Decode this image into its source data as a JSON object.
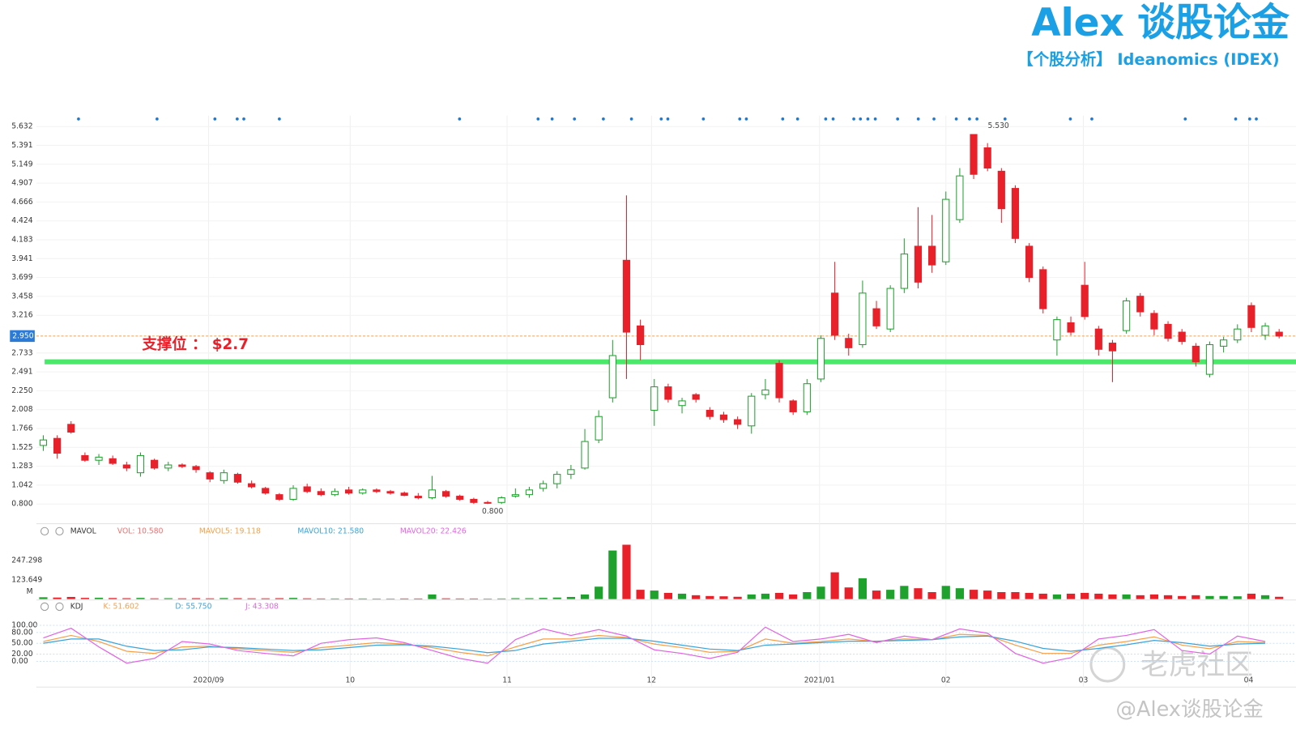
{
  "header": {
    "title": "Alex 谈股论金",
    "subtitle": "【个股分析】 Ideanomics (IDEX)"
  },
  "watermarks": [
    "老虎社区",
    "@Alex谈股论金"
  ],
  "chart_data": [
    {
      "type": "candlestick",
      "up_color": "#1fa12e",
      "down_color": "#e8202a",
      "xlim": [
        -0.5,
        89.5
      ],
      "ylim": [
        0.58,
        5.75
      ],
      "yticks": [
        {
          "value": 0.8,
          "label": "0.800"
        },
        1.042,
        1.283,
        1.525,
        1.766,
        2.008,
        {
          "value": 2.25,
          "label": "2.250"
        },
        2.491,
        2.733,
        3.216,
        3.458,
        3.699,
        3.941,
        4.183,
        4.424,
        4.666,
        4.907,
        5.149,
        5.391,
        5.632
      ],
      "grid": true,
      "last_price": {
        "value": 2.95,
        "label": "2.950",
        "color": "#f0a050"
      },
      "support_line": {
        "value": 2.62,
        "color": "#4be86b"
      },
      "annotations": [
        {
          "text": "支撑位 ： $2.7",
          "color": "#e8202a"
        }
      ],
      "high_mark": {
        "x": 67,
        "value": 5.53,
        "label": "5.530"
      },
      "low_mark": {
        "x": 32,
        "value": 0.8,
        "label": "0.800"
      },
      "open": [
        1.55,
        1.64,
        1.82,
        1.42,
        1.36,
        1.38,
        1.3,
        1.2,
        1.36,
        1.26,
        1.3,
        1.28,
        1.2,
        1.1,
        1.18,
        1.06,
        1.0,
        0.92,
        0.86,
        1.02,
        0.96,
        0.92,
        0.98,
        0.94,
        0.98,
        0.96,
        0.94,
        0.9,
        0.88,
        0.96,
        0.9,
        0.86,
        0.82,
        0.82,
        0.9,
        0.92,
        1.0,
        1.06,
        1.18,
        1.26,
        1.62,
        2.16,
        3.92,
        3.08,
        2.0,
        2.3,
        2.06,
        2.2,
        2.0,
        1.94,
        1.88,
        1.8,
        2.2,
        2.6,
        2.12,
        1.98,
        2.4,
        3.5,
        2.92,
        2.84,
        3.3,
        3.04,
        3.56,
        4.1,
        4.1,
        3.9,
        4.44,
        5.53,
        5.36,
        5.06,
        4.84,
        4.1,
        3.8,
        2.9,
        3.12,
        3.6,
        3.04,
        2.86,
        3.02,
        3.46,
        3.24,
        3.1,
        3.0,
        2.82,
        2.46,
        2.82,
        2.9,
        3.34,
        2.96,
        3.0
      ],
      "high": [
        1.68,
        1.68,
        1.86,
        1.46,
        1.44,
        1.42,
        1.34,
        1.46,
        1.38,
        1.34,
        1.32,
        1.3,
        1.22,
        1.24,
        1.2,
        1.1,
        1.02,
        0.94,
        1.04,
        1.06,
        1.0,
        1.0,
        1.02,
        1.0,
        1.0,
        0.98,
        0.96,
        0.94,
        1.16,
        0.98,
        0.92,
        0.88,
        0.84,
        0.9,
        1.0,
        1.02,
        1.1,
        1.22,
        1.3,
        1.76,
        2.0,
        2.9,
        4.75,
        3.16,
        2.4,
        2.34,
        2.16,
        2.22,
        2.04,
        1.98,
        1.92,
        2.22,
        2.4,
        2.64,
        2.14,
        2.4,
        2.96,
        3.9,
        2.98,
        3.66,
        3.4,
        3.6,
        4.2,
        4.6,
        4.5,
        4.8,
        5.1,
        5.53,
        5.42,
        5.1,
        4.88,
        4.14,
        3.84,
        3.2,
        3.2,
        3.9,
        3.08,
        2.9,
        3.44,
        3.5,
        3.28,
        3.14,
        3.04,
        2.86,
        2.88,
        2.94,
        3.1,
        3.38,
        3.12,
        3.04
      ],
      "low": [
        1.48,
        1.38,
        1.7,
        1.34,
        1.3,
        1.3,
        1.22,
        1.15,
        1.24,
        1.22,
        1.26,
        1.2,
        1.08,
        1.06,
        1.06,
        1.0,
        0.92,
        0.84,
        0.84,
        0.94,
        0.9,
        0.9,
        0.92,
        0.92,
        0.94,
        0.92,
        0.9,
        0.86,
        0.86,
        0.88,
        0.84,
        0.8,
        0.8,
        0.8,
        0.88,
        0.88,
        0.96,
        1.0,
        1.12,
        1.24,
        1.58,
        2.1,
        2.4,
        2.64,
        1.8,
        2.1,
        1.96,
        2.1,
        1.88,
        1.84,
        1.76,
        1.7,
        2.14,
        2.1,
        1.94,
        1.94,
        2.36,
        2.9,
        2.7,
        2.8,
        3.04,
        3.0,
        3.5,
        3.56,
        3.76,
        3.86,
        4.4,
        4.96,
        5.06,
        4.4,
        4.14,
        3.64,
        3.24,
        2.7,
        2.96,
        3.16,
        2.7,
        2.36,
        2.98,
        3.2,
        2.96,
        2.88,
        2.84,
        2.56,
        2.42,
        2.74,
        2.86,
        3.0,
        2.9,
        2.92
      ],
      "close": [
        1.62,
        1.45,
        1.72,
        1.36,
        1.4,
        1.32,
        1.26,
        1.42,
        1.26,
        1.3,
        1.28,
        1.24,
        1.12,
        1.2,
        1.08,
        1.02,
        0.94,
        0.86,
        1.0,
        0.96,
        0.92,
        0.96,
        0.94,
        0.98,
        0.96,
        0.94,
        0.91,
        0.88,
        0.98,
        0.9,
        0.86,
        0.82,
        0.81,
        0.88,
        0.92,
        0.98,
        1.06,
        1.18,
        1.24,
        1.6,
        1.92,
        2.7,
        3.0,
        2.84,
        2.3,
        2.14,
        2.12,
        2.14,
        1.92,
        1.88,
        1.82,
        2.18,
        2.26,
        2.16,
        1.98,
        2.34,
        2.92,
        2.96,
        2.8,
        3.5,
        3.08,
        3.56,
        4.0,
        3.64,
        3.86,
        4.7,
        5.0,
        5.02,
        5.1,
        4.58,
        4.2,
        3.7,
        3.3,
        3.16,
        3.0,
        3.2,
        2.78,
        2.76,
        3.4,
        3.26,
        3.04,
        2.92,
        2.88,
        2.62,
        2.84,
        2.9,
        3.04,
        3.06,
        3.08,
        2.95
      ]
    },
    {
      "type": "bar",
      "indicator": "MAVOL",
      "name": "VOL: 10.580",
      "name_color": "#f07070",
      "legend_extra": [
        {
          "text": "MAVOL5: 19.118",
          "color": "#f5a04a"
        },
        {
          "text": "MAVOL10: 21.580",
          "color": "#3ba3d8"
        },
        {
          "text": "MAVOL20: 22.426",
          "color": "#e066e0"
        }
      ],
      "unit": "M",
      "xlim": [
        -0.5,
        89.5
      ],
      "ylim": [
        0,
        371
      ],
      "yticks": [
        123.649,
        247.298
      ],
      "values": [
        12,
        10,
        14,
        8,
        9,
        7,
        6,
        8,
        5,
        6,
        5,
        6,
        5,
        7,
        6,
        5,
        5,
        6,
        8,
        5,
        4,
        4,
        4,
        4,
        3,
        3,
        4,
        4,
        30,
        5,
        4,
        4,
        3,
        4,
        6,
        6,
        8,
        10,
        14,
        30,
        80,
        312,
        349,
        60,
        55,
        40,
        35,
        25,
        20,
        18,
        15,
        30,
        35,
        40,
        30,
        45,
        80,
        172,
        75,
        134,
        55,
        60,
        85,
        70,
        45,
        85,
        70,
        60,
        55,
        45,
        45,
        40,
        35,
        30,
        35,
        40,
        35,
        30,
        30,
        25,
        30,
        25,
        20,
        25,
        20,
        20,
        18,
        35,
        25,
        15
      ]
    },
    {
      "type": "line",
      "indicator": "KDJ",
      "xlim": [
        -0.5,
        89.5
      ],
      "ylim": [
        -25,
        114.5
      ],
      "yticks": [
        {
          "value": 0,
          "label": "0.00"
        },
        {
          "value": 20,
          "label": "20.00"
        },
        {
          "value": 50,
          "label": "50.00"
        },
        {
          "value": 80,
          "label": "80.00"
        },
        {
          "value": 100,
          "label": "100.00"
        }
      ],
      "xticks": [
        {
          "value": 11.9,
          "label": "2020/09"
        },
        {
          "value": 22.1,
          "label": "10"
        },
        {
          "value": 33.4,
          "label": "11"
        },
        {
          "value": 43.8,
          "label": "12"
        },
        {
          "value": 55.9,
          "label": "2021/01"
        },
        {
          "value": 65.0,
          "label": "02"
        },
        {
          "value": 74.9,
          "label": "03"
        },
        {
          "value": 86.8,
          "label": "04"
        }
      ],
      "x": [
        0,
        2,
        4,
        6,
        8,
        10,
        12,
        14,
        16,
        18,
        20,
        22,
        24,
        26,
        28,
        30,
        32,
        34,
        36,
        38,
        40,
        42,
        44,
        46,
        48,
        50,
        52,
        54,
        56,
        58,
        60,
        62,
        64,
        66,
        68,
        70,
        72,
        74,
        76,
        78,
        80,
        82,
        84,
        86,
        88
      ],
      "series": [
        {
          "name": "K: 51.602",
          "color": "#f5a04a",
          "values": [
            55,
            72,
            55,
            28,
            22,
            40,
            42,
            35,
            30,
            25,
            38,
            45,
            52,
            48,
            38,
            25,
            15,
            40,
            62,
            62,
            72,
            66,
            48,
            38,
            25,
            28,
            62,
            50,
            55,
            62,
            55,
            62,
            60,
            75,
            72,
            45,
            22,
            22,
            45,
            55,
            68,
            45,
            35,
            55,
            52
          ]
        },
        {
          "name": "D: 55.750",
          "color": "#3ba3d8",
          "values": [
            50,
            62,
            62,
            42,
            30,
            32,
            40,
            38,
            34,
            30,
            32,
            38,
            45,
            46,
            42,
            34,
            24,
            30,
            48,
            56,
            64,
            64,
            56,
            45,
            34,
            30,
            45,
            48,
            52,
            56,
            56,
            58,
            60,
            68,
            70,
            56,
            36,
            28,
            36,
            46,
            58,
            52,
            42,
            48,
            50
          ]
        },
        {
          "name": "J: 43.308",
          "color": "#e066e0",
          "values": [
            65,
            92,
            40,
            -5,
            8,
            55,
            48,
            30,
            22,
            15,
            50,
            60,
            65,
            52,
            30,
            8,
            -5,
            60,
            90,
            72,
            88,
            70,
            32,
            22,
            8,
            25,
            95,
            55,
            62,
            75,
            52,
            70,
            60,
            90,
            78,
            22,
            -5,
            10,
            62,
            72,
            88,
            30,
            20,
            70,
            55
          ]
        }
      ]
    }
  ]
}
